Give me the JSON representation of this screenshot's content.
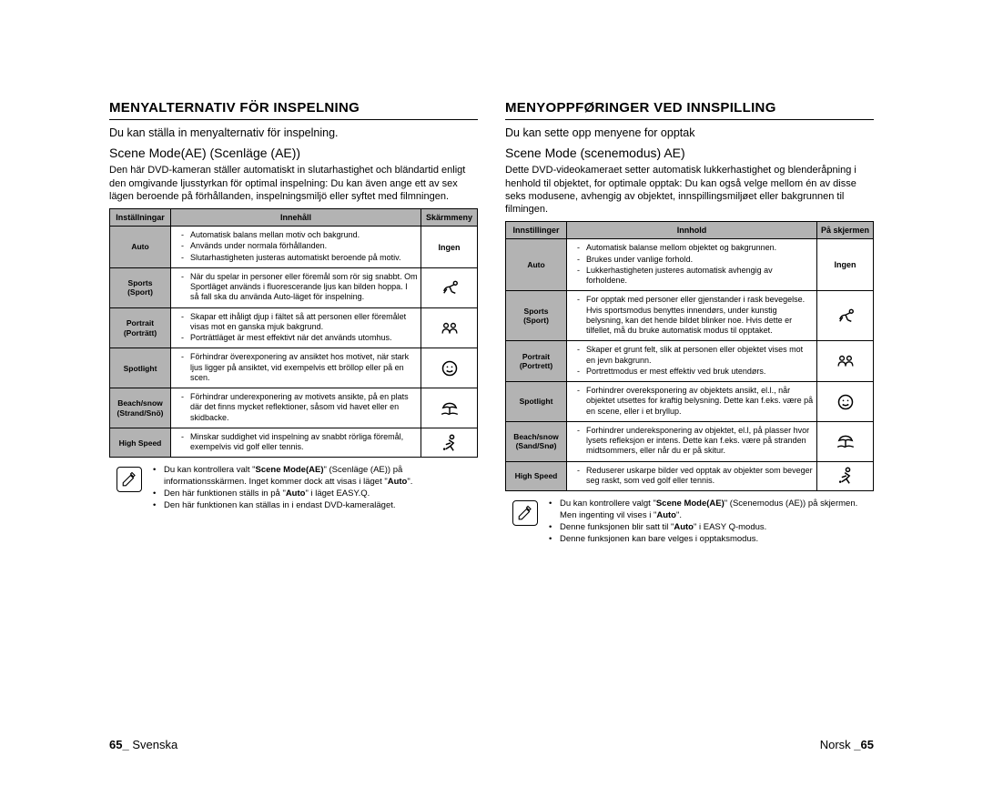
{
  "left": {
    "heading": "MENYALTERNATIV FÖR INSPELNING",
    "intro": "Du kan ställa in menyalternativ för inspelning.",
    "subheading": "Scene Mode(AE) (Scenläge (AE))",
    "desc": "Den här DVD-kameran ställer automatiskt in slutarhastighet och bländartid enligt den omgivande ljusstyrkan för optimal inspelning: Du kan även ange ett av sex lägen beroende på förhållanden, inspelningsmiljö eller syftet med filmningen.",
    "th": {
      "settings": "Inställningar",
      "content": "Innehåll",
      "screen": "Skärmmeny"
    },
    "rows": [
      {
        "setting": "Auto",
        "items": [
          "Automatisk balans mellan motiv och bakgrund.",
          "Används under normala förhållanden.",
          "Slutarhastigheten justeras automatiskt beroende på motiv."
        ],
        "screen": "Ingen",
        "icon": null
      },
      {
        "setting": "Sports\n(Sport)",
        "items": [
          "När du spelar in personer eller föremål som rör sig snabbt. Om Sportläget används i fluorescerande ljus kan bilden hoppa. I så fall ska du använda Auto-läget för inspelning."
        ],
        "icon": "sports"
      },
      {
        "setting": "Portrait\n(Porträtt)",
        "items": [
          "Skapar ett ihåligt djup i fältet så att personen eller föremålet visas mot en ganska mjuk bakgrund.",
          "Porträttläget är mest effektivt när det används utomhus."
        ],
        "icon": "portrait"
      },
      {
        "setting": "Spotlight",
        "items": [
          "Förhindrar överexponering av ansiktet hos motivet, när stark ljus ligger på ansiktet, vid exempelvis ett bröllop eller på en scen."
        ],
        "icon": "spotlight"
      },
      {
        "setting": "Beach/snow\n(Strand/Snö)",
        "items": [
          "Förhindrar underexponering av motivets ansikte, på en plats där det finns mycket reflektioner, såsom vid havet eller en skidbacke."
        ],
        "icon": "beach"
      },
      {
        "setting": "High Speed",
        "items": [
          "Minskar suddighet vid inspelning av snabbt rörliga föremål, exempelvis vid golf eller tennis."
        ],
        "icon": "highspeed"
      }
    ],
    "notes": [
      "Du kan kontrollera valt \"Scene Mode(AE)\" (Scenläge (AE)) på informationsskärmen. Inget kommer dock att visas i läget \"Auto\".",
      "Den här funktionen ställs in på \"Auto\" i läget EASY.Q.",
      "Den här funktionen kan ställas in i endast DVD-kameraläget."
    ],
    "footer_lang": "Svenska",
    "footer_page": "65_"
  },
  "right": {
    "heading": "MENYOPPFØRINGER VED INNSPILLING",
    "intro": "Du kan sette opp menyene for opptak",
    "subheading": "Scene Mode (scenemodus) AE)",
    "desc": "Dette DVD-videokameraet setter automatisk lukkerhastighet og blenderåpning i henhold til objektet, for optimale opptak: Du kan også velge mellom én av disse seks modusene, avhengig av objektet, innspillingsmiljøet eller bakgrunnen til filmingen.",
    "th": {
      "settings": "Innstillinger",
      "content": "Innhold",
      "screen": "På skjermen"
    },
    "rows": [
      {
        "setting": "Auto",
        "items": [
          "Automatisk balanse mellom objektet og bakgrunnen.",
          "Brukes under vanlige forhold.",
          "Lukkerhastigheten justeres automatisk avhengig av forholdene."
        ],
        "screen": "Ingen",
        "icon": null
      },
      {
        "setting": "Sports\n(Sport)",
        "items": [
          "For opptak med personer eller gjenstander i rask bevegelse. Hvis sportsmodus benyttes innendørs, under kunstig belysning, kan det hende bildet blinker noe. Hvis dette er tilfellet, må du bruke automatisk modus til opptaket."
        ],
        "icon": "sports"
      },
      {
        "setting": "Portrait\n(Portrett)",
        "items": [
          "Skaper et grunt felt, slik at personen eller objektet vises mot en jevn bakgrunn.",
          "Portrettmodus er mest effektiv ved bruk utendørs."
        ],
        "icon": "portrait"
      },
      {
        "setting": "Spotlight",
        "items": [
          "Forhindrer overeksponering av objektets ansikt, el.l., når objektet utsettes for kraftig belysning. Dette kan f.eks. være på en scene, eller i et bryllup."
        ],
        "icon": "spotlight"
      },
      {
        "setting": "Beach/snow\n(Sand/Snø)",
        "items": [
          "Forhindrer undereksponering av objektet, el.l, på plasser hvor lysets refleksjon er intens. Dette kan f.eks. være på stranden midtsommers, eller når du er på skitur."
        ],
        "icon": "beach"
      },
      {
        "setting": "High Speed",
        "items": [
          "Reduserer uskarpe bilder ved opptak av objekter som beveger seg raskt, som ved golf eller tennis."
        ],
        "icon": "highspeed"
      }
    ],
    "notes": [
      "Du kan kontrollere valgt \"Scene Mode(AE)\" (Scenemodus (AE)) på skjermen. Men ingenting vil vises i \"Auto\".",
      "Denne funksjonen blir satt til \"Auto\" i EASY Q-modus.",
      "Denne funksjonen kan bare velges i opptaksmodus."
    ],
    "footer_lang": "Norsk",
    "footer_page": "_65"
  },
  "colors": {
    "header_bg": "#b3b3b3",
    "border": "#000000",
    "text": "#000000",
    "bg": "#ffffff"
  }
}
